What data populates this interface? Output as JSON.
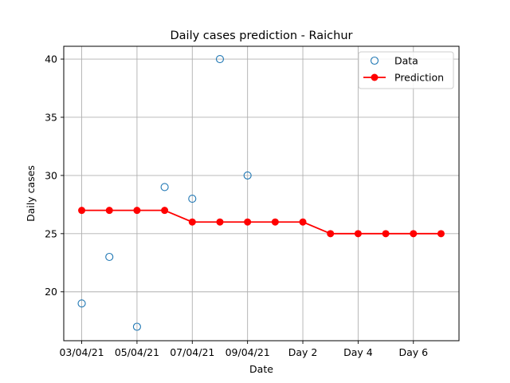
{
  "chart_data": {
    "type": "line",
    "title": "Daily cases prediction - Raichur",
    "xlabel": "Date",
    "ylabel": "Daily cases",
    "x_index_range": [
      -0.65,
      13.65
    ],
    "ylim": [
      15.8,
      41.1
    ],
    "grid": true,
    "legend_position": "top-right",
    "x_ticks": [
      {
        "index": 0,
        "label": "03/04/21"
      },
      {
        "index": 2,
        "label": "05/04/21"
      },
      {
        "index": 4,
        "label": "07/04/21"
      },
      {
        "index": 6,
        "label": "09/04/21"
      },
      {
        "index": 8,
        "label": "Day 2"
      },
      {
        "index": 10,
        "label": "Day 4"
      },
      {
        "index": 12,
        "label": "Day 6"
      }
    ],
    "y_ticks": [
      20,
      25,
      30,
      35,
      40
    ],
    "series": [
      {
        "name": "Data",
        "style": "markers",
        "color": "#1f77b4",
        "x_index": [
          0,
          1,
          2,
          3,
          4,
          5,
          6
        ],
        "values": [
          19,
          23,
          17,
          29,
          28,
          40,
          30
        ]
      },
      {
        "name": "Prediction",
        "style": "line-markers",
        "color": "#ff0000",
        "x_index": [
          0,
          1,
          2,
          3,
          4,
          5,
          6,
          7,
          8,
          9,
          10,
          11,
          12,
          13
        ],
        "values": [
          27,
          27,
          27,
          27,
          26,
          26,
          26,
          26,
          26,
          25,
          25,
          25,
          25,
          25
        ]
      }
    ]
  }
}
